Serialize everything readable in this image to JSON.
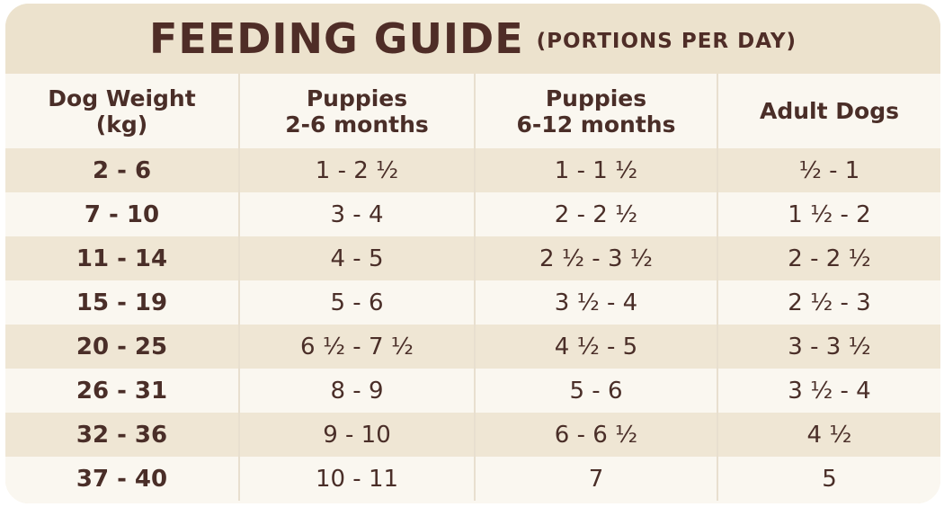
{
  "title": {
    "main": "FEEDING GUIDE",
    "sub": "(PORTIONS PER DAY)"
  },
  "colors": {
    "background": "#efe6d4",
    "band": "#efe6d4",
    "row_light": "#faf7f0",
    "text": "#4a2e28"
  },
  "table": {
    "headers": [
      "Dog Weight\n(kg)",
      "Puppies\n2-6 months",
      "Puppies\n6-12 months",
      "Adult Dogs"
    ],
    "rows": [
      [
        "2 - 6",
        "1 - 2 ½",
        "1 - 1 ½",
        "½ - 1"
      ],
      [
        "7 - 10",
        "3 - 4",
        "2 - 2 ½",
        "1 ½ - 2"
      ],
      [
        "11 - 14",
        "4 - 5",
        "2 ½ - 3 ½",
        "2 - 2 ½"
      ],
      [
        "15 - 19",
        "5 - 6",
        "3 ½ - 4",
        "2 ½ - 3"
      ],
      [
        "20 - 25",
        "6 ½ - 7 ½",
        "4 ½ - 5",
        "3 - 3 ½"
      ],
      [
        "26 - 31",
        "8 - 9",
        "5 - 6",
        "3 ½ - 4"
      ],
      [
        "32 - 36",
        "9 - 10",
        "6 - 6 ½",
        "4 ½"
      ],
      [
        "37 - 40",
        "10 - 11",
        "7",
        "5"
      ]
    ]
  }
}
